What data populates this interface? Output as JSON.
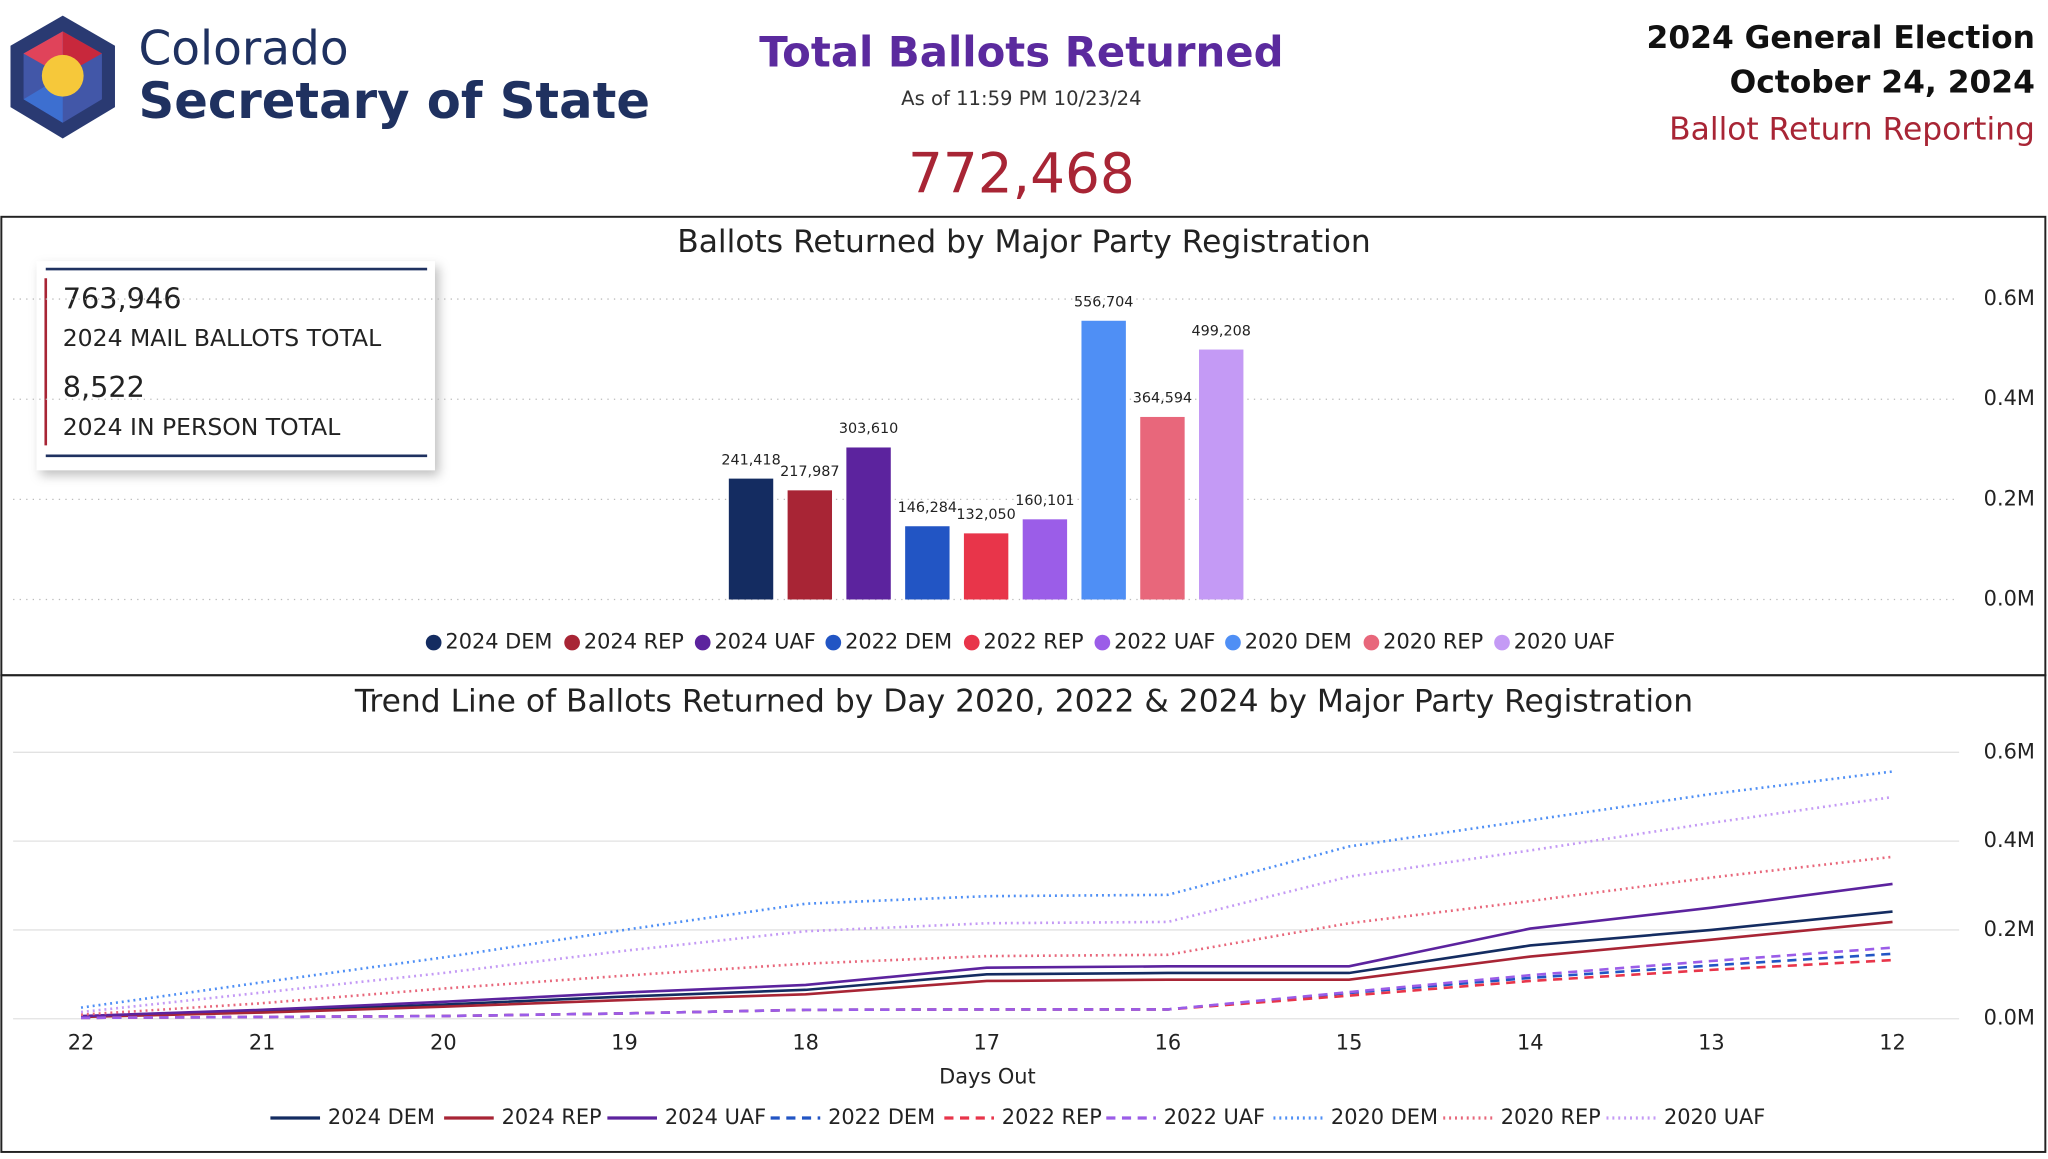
{
  "header": {
    "logo_line1": "Colorado",
    "logo_line2": "Secretary of State",
    "title": "Total Ballots Returned",
    "subtitle": "As of 11:59 PM 10/23/24",
    "total": "772,468",
    "election": "2024 General Election",
    "date": "October 24, 2024",
    "report": "Ballot Return Reporting"
  },
  "summary": {
    "mail_total": "763,946",
    "mail_label": "2024 MAIL BALLOTS TOTAL",
    "in_person_total": "8,522",
    "in_person_label": "2024 IN PERSON TOTAL"
  },
  "chart_data": [
    {
      "type": "bar",
      "title": "Ballots Returned by Major Party Registration",
      "categories": [
        "2024 DEM",
        "2024 REP",
        "2024 UAF",
        "2022 DEM",
        "2022 REP",
        "2022 UAF",
        "2020 DEM",
        "2020 REP",
        "2020 UAF"
      ],
      "values": [
        241418,
        217987,
        303610,
        146284,
        132050,
        160101,
        556704,
        364594,
        499208
      ],
      "value_labels": [
        "241,418",
        "217,987",
        "303,610",
        "146,284",
        "132,050",
        "160,101",
        "556,704",
        "364,594",
        "499,208"
      ],
      "colors": [
        "#142c61",
        "#a82535",
        "#5c239e",
        "#2255c4",
        "#e8354a",
        "#9b5de8",
        "#4f8ff5",
        "#e8677b",
        "#c49af5"
      ],
      "ylim": [
        0,
        650000
      ],
      "yticks": [
        {
          "value": 0,
          "label": "0.0M"
        },
        {
          "value": 200000,
          "label": "0.2M"
        },
        {
          "value": 400000,
          "label": "0.4M"
        },
        {
          "value": 600000,
          "label": "0.6M"
        }
      ],
      "grid": true
    },
    {
      "type": "line",
      "title": "Trend Line of Ballots Returned by Day 2020, 2022 & 2024 by Major Party Registration",
      "x_label": "Days Out",
      "x": [
        22,
        21,
        20,
        19,
        18,
        17,
        16,
        15,
        14,
        13,
        12
      ],
      "xlim": [
        22,
        12
      ],
      "xticks": [
        22,
        21,
        20,
        19,
        18,
        17,
        16,
        15,
        14,
        13,
        12
      ],
      "ylim": [
        0,
        650000
      ],
      "yticks": [
        {
          "value": 0,
          "label": "0.0M"
        },
        {
          "value": 200000,
          "label": "0.2M"
        },
        {
          "value": 400000,
          "label": "0.4M"
        },
        {
          "value": 600000,
          "label": "0.6M"
        }
      ],
      "grid": true,
      "series": [
        {
          "name": "2024 DEM",
          "color": "#142c61",
          "dash": "solid",
          "values": [
            5000,
            17000,
            32000,
            50000,
            65000,
            100000,
            103000,
            103000,
            165000,
            200000,
            241418
          ]
        },
        {
          "name": "2024 REP",
          "color": "#a82535",
          "dash": "solid",
          "values": [
            4000,
            14000,
            27000,
            42000,
            55000,
            85000,
            88000,
            88000,
            140000,
            178000,
            217987
          ]
        },
        {
          "name": "2024 UAF",
          "color": "#5c239e",
          "dash": "solid",
          "values": [
            6000,
            20000,
            38000,
            59000,
            76000,
            115000,
            118000,
            118000,
            203000,
            250000,
            303610
          ]
        },
        {
          "name": "2022 DEM",
          "color": "#2255c4",
          "dash": "dashed",
          "values": [
            2000,
            4000,
            6000,
            12000,
            20000,
            21000,
            21000,
            58000,
            92000,
            120000,
            146284
          ]
        },
        {
          "name": "2022 REP",
          "color": "#e8354a",
          "dash": "dashed",
          "values": [
            2000,
            4000,
            6000,
            12000,
            20000,
            21000,
            21000,
            52000,
            85000,
            110000,
            132050
          ]
        },
        {
          "name": "2022 UAF",
          "color": "#9b5de8",
          "dash": "dashed",
          "values": [
            2000,
            4000,
            6000,
            12000,
            20000,
            21000,
            21000,
            60000,
            98000,
            130000,
            160101
          ]
        },
        {
          "name": "2020 DEM",
          "color": "#4f8ff5",
          "dash": "dotted",
          "values": [
            25000,
            82000,
            138000,
            200000,
            259000,
            276000,
            279000,
            388000,
            447000,
            506000,
            556704
          ]
        },
        {
          "name": "2020 REP",
          "color": "#e8677b",
          "dash": "dotted",
          "values": [
            9000,
            35000,
            68000,
            97000,
            124000,
            141000,
            144000,
            215000,
            265000,
            318000,
            364594
          ]
        },
        {
          "name": "2020 UAF",
          "color": "#c49af5",
          "dash": "dotted",
          "values": [
            15000,
            59000,
            103000,
            153000,
            197000,
            215000,
            218000,
            320000,
            379000,
            441000,
            499208
          ]
        }
      ]
    }
  ]
}
